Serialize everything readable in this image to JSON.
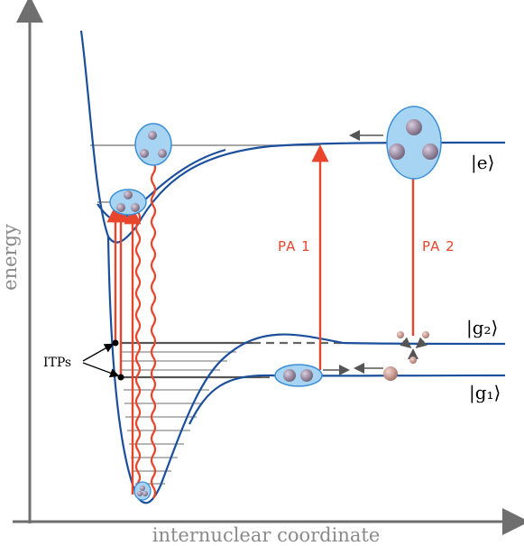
{
  "axes": {
    "x_label": "internuclear coordinate",
    "y_label": "energy"
  },
  "states": {
    "e": "|e⟩",
    "g2": "|g₂⟩",
    "g1": "|g₁⟩"
  },
  "transitions": {
    "pa1": "PA 1",
    "pa2": "PA 2"
  },
  "itp_label": "ITPs",
  "colors": {
    "curve": "#1b4f9c",
    "laser": "#e8452c",
    "bubble_fill": "#a8d4f3",
    "bubble_stroke": "#3b8fd8",
    "atom": "#9a8aa0",
    "levels": "#7a7a7a",
    "axis": "#6f6f6f"
  }
}
